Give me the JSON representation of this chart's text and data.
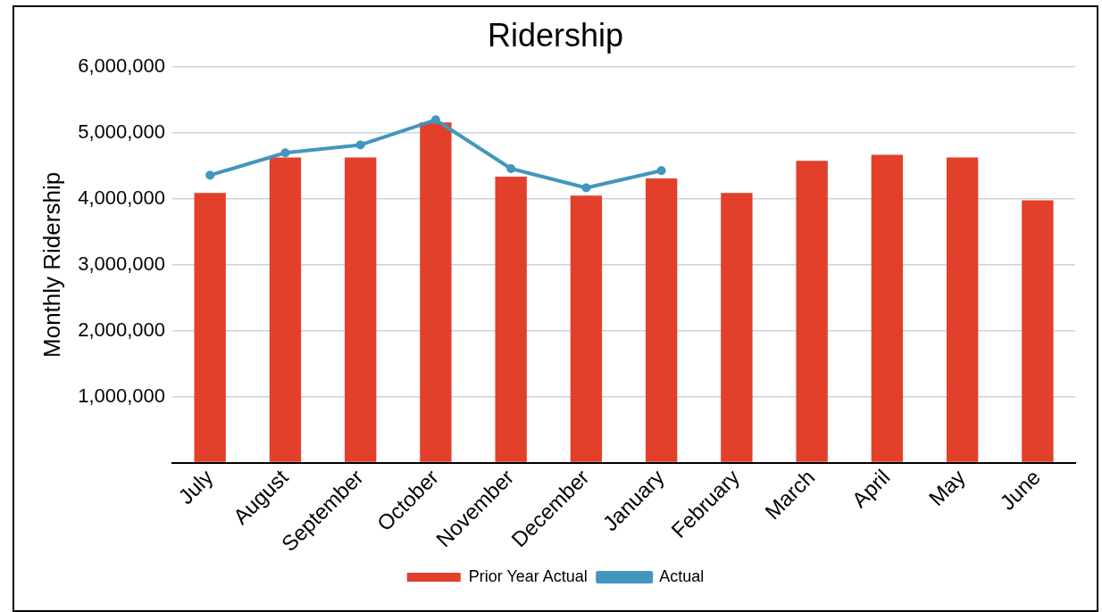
{
  "chart_data": {
    "type": "bar",
    "title": "Ridership",
    "ylabel": "Monthly Ridership",
    "categories": [
      "July",
      "August",
      "September",
      "October",
      "November",
      "December",
      "January",
      "February",
      "March",
      "April",
      "May",
      "June"
    ],
    "series": [
      {
        "name": "Prior Year Actual",
        "color": "#e2402b",
        "values": [
          4090000,
          4630000,
          4630000,
          5160000,
          4340000,
          4050000,
          4310000,
          4090000,
          4580000,
          4670000,
          4630000,
          3980000
        ]
      },
      {
        "name": "Actual",
        "type": "line",
        "color": "#4396be",
        "values": [
          4360000,
          4700000,
          4820000,
          5200000,
          4460000,
          4170000,
          4430000,
          null,
          null,
          null,
          null,
          null
        ]
      }
    ],
    "ylim": [
      0,
      6000000
    ],
    "yticks": [
      {
        "value": 0,
        "label": null
      },
      {
        "value": 1000000,
        "label": "1,000,000"
      },
      {
        "value": 2000000,
        "label": "2,000,000"
      },
      {
        "value": 3000000,
        "label": "3,000,000"
      },
      {
        "value": 4000000,
        "label": "4,000,000"
      },
      {
        "value": 5000000,
        "label": "5,000,000"
      },
      {
        "value": 6000000,
        "label": "6,000,000"
      }
    ],
    "grid": "y",
    "legend": "bottom",
    "marker": "circle",
    "line_style": "solid"
  }
}
